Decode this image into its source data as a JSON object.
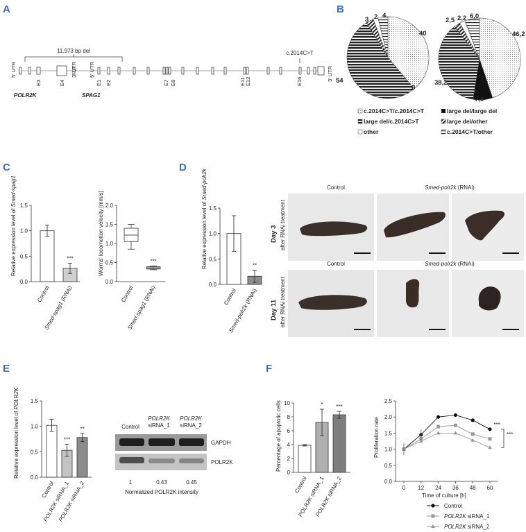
{
  "panels": {
    "A": "A",
    "B": "B",
    "C": "C",
    "D": "D",
    "E": "E",
    "F": "F"
  },
  "panelA": {
    "deletion_label": "11.973 bp del",
    "variant_label": "c.2014C>T",
    "left_5utr": "5' UTR",
    "left_3utr": "3' UTR",
    "right_5utr": "5' UTR",
    "right_3utr": "3' UTR",
    "exons": [
      "E3",
      "E4",
      "E1",
      "E2",
      "E7",
      "E8",
      "E11",
      "E12",
      "E16"
    ],
    "gene1": "POLR2K",
    "gene2": "SPAG1"
  },
  "panelB": {
    "pie1": {
      "values": [
        40,
        0,
        54,
        3,
        2,
        4
      ],
      "labels": [
        "40",
        "0",
        "54",
        "3",
        "2",
        "4"
      ]
    },
    "pie2": {
      "values": [
        46.2,
        7.9,
        38.2,
        2.5,
        2.2,
        6.0
      ],
      "labels": [
        "46,2",
        "7,9",
        "38,2",
        "2,5",
        "2,2",
        "6,0"
      ]
    },
    "legend": [
      "c.2014C>T/c.2014C>T",
      "large del/large del",
      "large del/c.2014C>T",
      "large del/other",
      "other",
      "c.2014C>T/other"
    ]
  },
  "panelC": {
    "bar_ylabel_prefix": "Relative expression level of ",
    "bar_ylabel_gene": "Smed-spag1",
    "bar_categories": [
      "Control",
      "Smed-spag1 (RNAi)"
    ],
    "bar_values": [
      1.0,
      0.26
    ],
    "bar_errors": [
      0.11,
      0.1
    ],
    "bar_yticks": [
      "0.0",
      "0.5",
      "1.0",
      "1.5"
    ],
    "bar_sig": "***",
    "box_ylabel": "Worms' locomotion velocity [mm/s]",
    "box_categories": [
      "Control",
      "Smed-spag1 (RNAi)"
    ],
    "box_control": {
      "min": 0.85,
      "q1": 1.05,
      "median": 1.22,
      "q3": 1.4,
      "max": 1.5
    },
    "box_rnai": {
      "min": 0.31,
      "q1": 0.33,
      "median": 0.36,
      "q3": 0.39,
      "max": 0.41
    },
    "box_yticks": [
      "0.0",
      "0.5",
      "1.0",
      "1.5",
      "2.0"
    ],
    "box_sig": "***"
  },
  "panelD": {
    "ylabel_prefix": "Relative expression level of ",
    "ylabel_gene": "Smed-polr2k",
    "categories": [
      "Control",
      "Smed-polr2k (RNAi)"
    ],
    "values": [
      1.0,
      0.16
    ],
    "errors": [
      0.35,
      0.12
    ],
    "yticks": [
      "0.0",
      "0.5",
      "1.0",
      "1.5"
    ],
    "sig": "**",
    "col_control": "Control",
    "col_rnai_gene": "Smed-polr2k",
    "col_rnai_suffix": " (RNAi)",
    "row1_day": "Day 3",
    "row1_sub": "after RNAi treatment",
    "row2_day": "Day 11",
    "row2_sub": "after RNAi treatment"
  },
  "panelE": {
    "ylabel_prefix": "Relative expression level of ",
    "ylabel_gene": "POLR2K",
    "categories": [
      "Control",
      "POLR2K siRNA_1",
      "POLR2K siRNA_2"
    ],
    "values": [
      1.02,
      0.53,
      0.78
    ],
    "errors": [
      0.12,
      0.12,
      0.08
    ],
    "yticks": [
      "0.0",
      "0.5",
      "1.0",
      "1.5"
    ],
    "sigs": [
      "",
      "***",
      "**"
    ],
    "blot_cols": [
      "Control",
      "POLR2K",
      "siRNA_1",
      "POLR2K",
      "siRNA_2"
    ],
    "blot_rows": [
      "GAPDH",
      "POLR2K"
    ],
    "intensities": [
      "1",
      "0.43",
      "0.45"
    ],
    "intensity_caption": "Normalized POLR2K intensity"
  },
  "panelF": {
    "ylabel": "Percentage of apoptotic cells",
    "categories": [
      "Control",
      "POLR2K siRNA_1",
      "POLR2K siRNA_2"
    ],
    "values": [
      3.9,
      7.2,
      8.3
    ],
    "errors": [
      0.1,
      1.9,
      0.5
    ],
    "yticks": [
      "0",
      "2",
      "4",
      "6",
      "8",
      "10"
    ],
    "sigs": [
      "",
      "*",
      "***"
    ],
    "line_ylabel": "Proliferation rate",
    "line_xlabel": "Time of culture [h]",
    "x": [
      0,
      12,
      24,
      36,
      48,
      60
    ],
    "xticks": [
      "0",
      "12",
      "24",
      "36",
      "48",
      "60"
    ],
    "line_yticks": [
      "0.0",
      "0.5",
      "1.0",
      "1.5",
      "2.0",
      "2.5"
    ],
    "series": [
      {
        "name": "Control",
        "values": [
          1.0,
          1.45,
          2.0,
          2.06,
          1.9,
          1.62
        ]
      },
      {
        "name": "POLR2K siRNA_1",
        "values": [
          1.0,
          1.32,
          1.7,
          1.74,
          1.47,
          1.32
        ]
      },
      {
        "name": "POLR2K siRNA_2",
        "values": [
          1.0,
          1.25,
          1.5,
          1.5,
          1.28,
          1.05
        ]
      }
    ],
    "sig_a": "***",
    "sig_b": "***"
  },
  "chart_data": [
    {
      "type": "pie",
      "values": [
        40,
        0,
        54,
        3,
        2,
        4
      ],
      "categories": [
        "c.2014C>T/c.2014C>T",
        "large del/large del",
        "large del/c.2014C>T",
        "large del/other",
        "other",
        "c.2014C>T/other"
      ]
    },
    {
      "type": "pie",
      "values": [
        46.2,
        7.9,
        38.2,
        2.5,
        2.2,
        6.0
      ],
      "categories": [
        "c.2014C>T/c.2014C>T",
        "large del/large del",
        "large del/c.2014C>T",
        "large del/other",
        "other",
        "c.2014C>T/other"
      ]
    },
    {
      "type": "bar",
      "categories": [
        "Control",
        "Smed-spag1 (RNAi)"
      ],
      "values": [
        1.0,
        0.26
      ],
      "ylim": [
        0,
        1.5
      ]
    },
    {
      "type": "bar",
      "categories": [
        "Control",
        "Smed-polr2k (RNAi)"
      ],
      "values": [
        1.0,
        0.16
      ],
      "ylim": [
        0,
        1.5
      ]
    },
    {
      "type": "bar",
      "categories": [
        "Control",
        "POLR2K siRNA_1",
        "POLR2K siRNA_2"
      ],
      "values": [
        1.02,
        0.53,
        0.78
      ],
      "ylim": [
        0,
        1.5
      ]
    },
    {
      "type": "bar",
      "categories": [
        "Control",
        "POLR2K siRNA_1",
        "POLR2K siRNA_2"
      ],
      "values": [
        3.9,
        7.2,
        8.3
      ],
      "ylim": [
        0,
        10
      ]
    },
    {
      "type": "line",
      "x": [
        0,
        12,
        24,
        36,
        48,
        60
      ],
      "ylim": [
        0,
        2.5
      ],
      "series": [
        {
          "name": "Control",
          "values": [
            1.0,
            1.45,
            2.0,
            2.06,
            1.9,
            1.62
          ]
        },
        {
          "name": "POLR2K siRNA_1",
          "values": [
            1.0,
            1.32,
            1.7,
            1.74,
            1.47,
            1.32
          ]
        },
        {
          "name": "POLR2K siRNA_2",
          "values": [
            1.0,
            1.25,
            1.5,
            1.5,
            1.28,
            1.05
          ]
        }
      ]
    }
  ]
}
